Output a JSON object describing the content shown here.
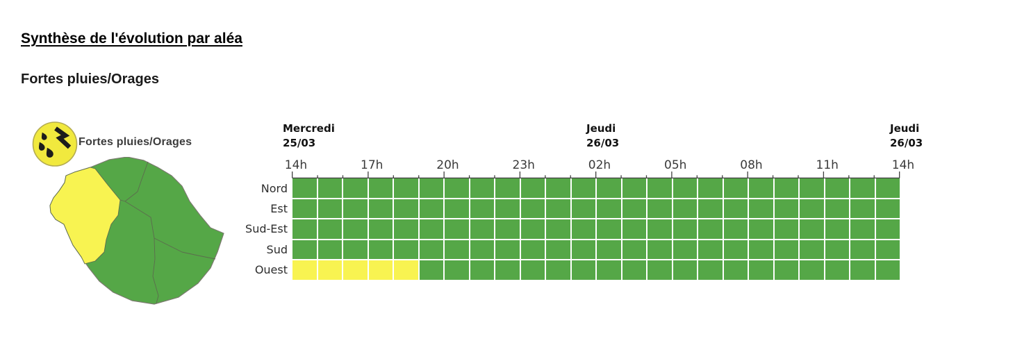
{
  "page": {
    "section_title": "Synthèse de l'évolution par aléa",
    "hazard_heading": "Fortes pluies/Orages"
  },
  "hazard": {
    "icon": "rain-storm-icon",
    "label": "Fortes pluies/Orages"
  },
  "colors": {
    "vert": "#55a747",
    "jaune": "#f8f351",
    "hazard_icon_bg": "#f1e93e",
    "hazard_icon_glyph": "#1c1c1c",
    "axis": "#3f3f3f",
    "map_border": "#5c6b4e",
    "map_outline": "#7a7a6e"
  },
  "map": {
    "region": "La Réunion",
    "zones": [
      {
        "name": "Nord",
        "level": "vert"
      },
      {
        "name": "Est",
        "level": "vert"
      },
      {
        "name": "Sud-Est",
        "level": "vert"
      },
      {
        "name": "Sud",
        "level": "vert"
      },
      {
        "name": "Ouest",
        "level": "jaune"
      }
    ]
  },
  "chart_data": {
    "type": "heatmap",
    "title": "Fortes pluies/Orages",
    "x_tick_labels": [
      "14h",
      "17h",
      "20h",
      "23h",
      "02h",
      "05h",
      "08h",
      "11h",
      "14h"
    ],
    "hours_span": 24,
    "cells_per_row": 24,
    "hours_per_cell": 1,
    "day_markers": [
      {
        "day": "Mercredi",
        "date": "25/03",
        "tick_index": 0
      },
      {
        "day": "Jeudi",
        "date": "26/03",
        "tick_index": 4
      },
      {
        "day": "Jeudi",
        "date": "26/03",
        "tick_index": 8
      }
    ],
    "levels_legend": [
      "vert",
      "jaune"
    ],
    "rows": [
      {
        "name": "Nord",
        "cells": [
          "vert",
          "vert",
          "vert",
          "vert",
          "vert",
          "vert",
          "vert",
          "vert",
          "vert",
          "vert",
          "vert",
          "vert",
          "vert",
          "vert",
          "vert",
          "vert",
          "vert",
          "vert",
          "vert",
          "vert",
          "vert",
          "vert",
          "vert",
          "vert"
        ]
      },
      {
        "name": "Est",
        "cells": [
          "vert",
          "vert",
          "vert",
          "vert",
          "vert",
          "vert",
          "vert",
          "vert",
          "vert",
          "vert",
          "vert",
          "vert",
          "vert",
          "vert",
          "vert",
          "vert",
          "vert",
          "vert",
          "vert",
          "vert",
          "vert",
          "vert",
          "vert",
          "vert"
        ]
      },
      {
        "name": "Sud-Est",
        "cells": [
          "vert",
          "vert",
          "vert",
          "vert",
          "vert",
          "vert",
          "vert",
          "vert",
          "vert",
          "vert",
          "vert",
          "vert",
          "vert",
          "vert",
          "vert",
          "vert",
          "vert",
          "vert",
          "vert",
          "vert",
          "vert",
          "vert",
          "vert",
          "vert"
        ]
      },
      {
        "name": "Sud",
        "cells": [
          "vert",
          "vert",
          "vert",
          "vert",
          "vert",
          "vert",
          "vert",
          "vert",
          "vert",
          "vert",
          "vert",
          "vert",
          "vert",
          "vert",
          "vert",
          "vert",
          "vert",
          "vert",
          "vert",
          "vert",
          "vert",
          "vert",
          "vert",
          "vert"
        ]
      },
      {
        "name": "Ouest",
        "cells": [
          "jaune",
          "jaune",
          "jaune",
          "jaune",
          "jaune",
          "vert",
          "vert",
          "vert",
          "vert",
          "vert",
          "vert",
          "vert",
          "vert",
          "vert",
          "vert",
          "vert",
          "vert",
          "vert",
          "vert",
          "vert",
          "vert",
          "vert",
          "vert",
          "vert"
        ]
      }
    ]
  }
}
